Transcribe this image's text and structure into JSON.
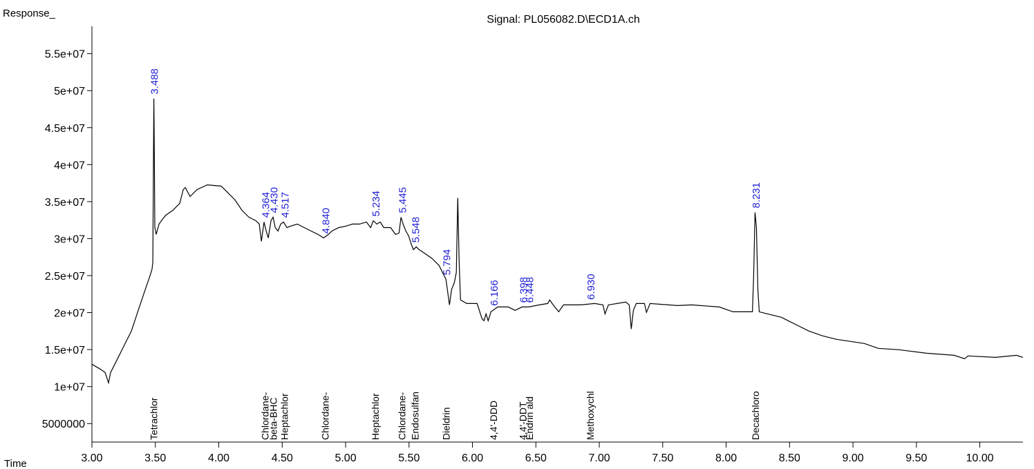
{
  "chart_data": {
    "type": "line",
    "title": "Signal: PL056082.D\\ECD1A.ch",
    "ylabel": "Response_",
    "xlabel": "Time",
    "color": "#000000",
    "label_color": "#1f1fd6",
    "xlim": [
      3.0,
      10.34
    ],
    "ylim": [
      2500000,
      58700000
    ],
    "xticks": [
      {
        "value": 3,
        "label": "3.00"
      },
      {
        "value": 3.5,
        "label": "3.50"
      },
      {
        "value": 4,
        "label": "4.00"
      },
      {
        "value": 4.5,
        "label": "4.50"
      },
      {
        "value": 5,
        "label": "5.00"
      },
      {
        "value": 5.5,
        "label": "5.50"
      },
      {
        "value": 6,
        "label": "6.00"
      },
      {
        "value": 6.5,
        "label": "6.50"
      },
      {
        "value": 7,
        "label": "7.00"
      },
      {
        "value": 7.5,
        "label": "7.50"
      },
      {
        "value": 8,
        "label": "8.00"
      },
      {
        "value": 8.5,
        "label": "8.50"
      },
      {
        "value": 9,
        "label": "9.00"
      },
      {
        "value": 9.5,
        "label": "9.50"
      },
      {
        "value": 10,
        "label": "10.00"
      }
    ],
    "yticks": [
      5000000,
      {
        "value": 10000000,
        "label": "1e+07"
      },
      {
        "value": 15000000,
        "label": "1.5e+07"
      },
      {
        "value": 20000000,
        "label": "2e+07"
      },
      {
        "value": 25000000,
        "label": "2.5e+07"
      },
      {
        "value": 30000000,
        "label": "3e+07"
      },
      {
        "value": 35000000,
        "label": "3.5e+07"
      },
      {
        "value": 40000000,
        "label": "4e+07"
      },
      {
        "value": 45000000,
        "label": "4.5e+07"
      },
      {
        "value": 50000000,
        "label": "5e+07"
      },
      {
        "value": 55000000,
        "label": "5.5e+07"
      }
    ],
    "x": [
      3.0,
      3.065,
      3.104,
      3.131,
      3.147,
      3.202,
      3.256,
      3.311,
      3.365,
      3.42,
      3.458,
      3.474,
      3.48,
      3.488,
      3.491,
      3.496,
      3.507,
      3.529,
      3.556,
      3.583,
      3.638,
      3.692,
      3.72,
      3.736,
      3.774,
      3.829,
      3.91,
      4.019,
      4.074,
      4.128,
      4.183,
      4.238,
      4.292,
      4.319,
      4.336,
      4.357,
      4.374,
      4.39,
      4.412,
      4.428,
      4.445,
      4.467,
      4.488,
      4.51,
      4.537,
      4.565,
      4.619,
      4.674,
      4.728,
      4.783,
      4.826,
      4.864,
      4.892,
      4.946,
      5.001,
      5.055,
      5.11,
      5.164,
      5.197,
      5.219,
      5.246,
      5.273,
      5.301,
      5.355,
      5.393,
      5.421,
      5.437,
      5.453,
      5.475,
      5.497,
      5.519,
      5.535,
      5.557,
      5.579,
      5.628,
      5.683,
      5.737,
      5.764,
      5.791,
      5.819,
      5.835,
      5.857,
      5.873,
      5.884,
      5.895,
      5.906,
      5.955,
      6.037,
      6.075,
      6.091,
      6.107,
      6.124,
      6.146,
      6.2,
      6.282,
      6.336,
      6.391,
      6.445,
      6.527,
      6.593,
      6.609,
      6.636,
      6.68,
      6.718,
      6.854,
      6.963,
      7.029,
      7.045,
      7.072,
      7.209,
      7.236,
      7.252,
      7.269,
      7.291,
      7.356,
      7.372,
      7.4,
      7.618,
      7.727,
      7.945,
      8.054,
      8.207,
      8.217,
      8.228,
      8.239,
      8.25,
      8.261,
      8.326,
      8.435,
      8.544,
      8.653,
      8.762,
      8.872,
      9.09,
      9.199,
      9.362,
      9.58,
      9.798,
      9.88,
      9.907,
      10.125,
      10.289,
      10.34
    ],
    "values": [
      13020000.0,
      12370000.0,
      11900000.0,
      10500000.0,
      11900000.0,
      13770000.0,
      15630000.0,
      17500000.0,
      20300000.0,
      23100000.0,
      24960000.0,
      25890000.0,
      26830000.0,
      48930000.0,
      43620000.0,
      31490000.0,
      30560000.0,
      31960000.0,
      32610000.0,
      33170000.0,
      33820000.0,
      34760000.0,
      36620000.0,
      36900000.0,
      35690000.0,
      36620000.0,
      37270000.0,
      37090000.0,
      36160000.0,
      35220000.0,
      33820000.0,
      32890000.0,
      32420000.0,
      31960000.0,
      29630000.0,
      32240000.0,
      31020000.0,
      30090000.0,
      32420000.0,
      32890000.0,
      31490000.0,
      31020000.0,
      31960000.0,
      32240000.0,
      31490000.0,
      31680000.0,
      31960000.0,
      31490000.0,
      31020000.0,
      30560000.0,
      30090000.0,
      30560000.0,
      31020000.0,
      31490000.0,
      31680000.0,
      31960000.0,
      31960000.0,
      32240000.0,
      31490000.0,
      32420000.0,
      31960000.0,
      32240000.0,
      31490000.0,
      31490000.0,
      30560000.0,
      30740000.0,
      32890000.0,
      31960000.0,
      31020000.0,
      30370000.0,
      29160000.0,
      28510000.0,
      28880000.0,
      28510000.0,
      27950000.0,
      27290000.0,
      26360000.0,
      25430000.0,
      24500000.0,
      21040000.0,
      23100000.0,
      24030000.0,
      25430000.0,
      35500000.0,
      26830000.0,
      21700000.0,
      21230000.0,
      21230000.0,
      19180000.0,
      18900000.0,
      19830000.0,
      18900000.0,
      20110000.0,
      20760000.0,
      20760000.0,
      20300000.0,
      20760000.0,
      20760000.0,
      21040000.0,
      21230000.0,
      21700000.0,
      21040000.0,
      20110000.0,
      21040000.0,
      21040000.0,
      21230000.0,
      21040000.0,
      19830000.0,
      21040000.0,
      21420000.0,
      21040000.0,
      17780000.0,
      20300000.0,
      21230000.0,
      21230000.0,
      20020000.0,
      21230000.0,
      20950000.0,
      21040000.0,
      20760000.0,
      20110000.0,
      20110000.0,
      24960000.0,
      33540000.0,
      31490000.0,
      23100000.0,
      20110000.0,
      19830000.0,
      19370000.0,
      18430000.0,
      17500000.0,
      16850000.0,
      16380000.0,
      15820000.0,
      15170000.0,
      14980000.0,
      14510000.0,
      14230000.0,
      13770000.0,
      14140000.0,
      13950000.0,
      14230000.0,
      13950000.0
    ],
    "peaks": {
      "x": [
        3.488,
        4.364,
        4.43,
        4.517,
        4.84,
        5.234,
        5.445,
        5.548,
        5.794,
        6.166,
        6.398,
        6.448,
        6.93,
        8.231
      ],
      "labels": [
        "3.488",
        "4.364",
        "4.430",
        "4.517",
        "4.840",
        "5.234",
        "5.445",
        "5.548",
        "5.794",
        "6.166",
        "6.398",
        "6.448",
        "6.930",
        "8.231"
      ],
      "names": [
        "Tetrachlor",
        "Chlordane-",
        "beta-BHC",
        "Heptachlor",
        "Chlordane-",
        "Heptachlor",
        "Chlordane-",
        "Endosulfan",
        "Dieldrin",
        "4,4'-DDD",
        "4,4'-DDT",
        "Endrin ald",
        "Methoxychl",
        "Decachloro"
      ]
    }
  }
}
